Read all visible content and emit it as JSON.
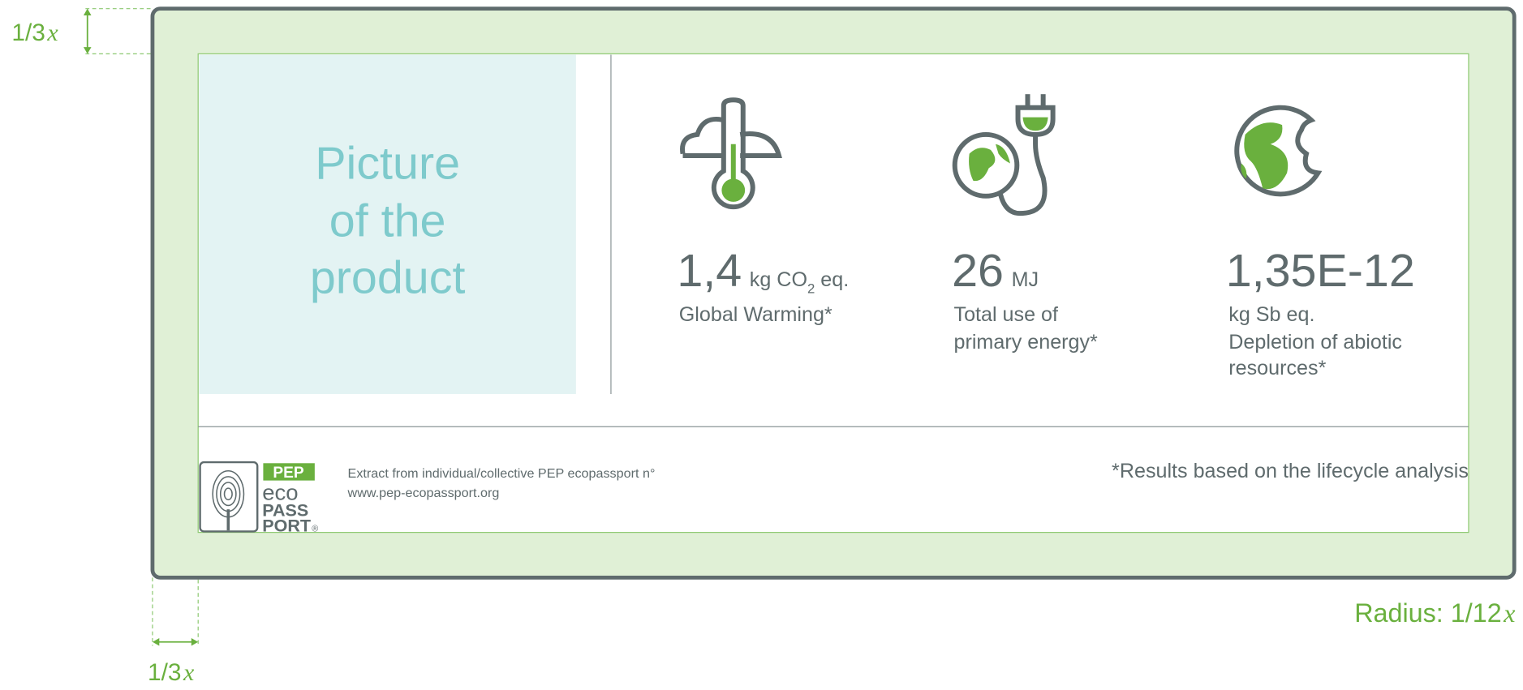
{
  "dimensions": {
    "top": {
      "fraction": "1/3",
      "variable": "x"
    },
    "left": {
      "fraction": "1/3",
      "variable": "x"
    },
    "radius": {
      "prefix": "Radius: ",
      "fraction": "1/12",
      "variable": "x"
    }
  },
  "placeholder": {
    "lines": [
      "Picture",
      "of the",
      "product"
    ]
  },
  "indicators": [
    {
      "value": "1,4",
      "unit": "kg CO",
      "unit_sub": "2",
      "unit_tail": " eq.",
      "label_lines": [
        "Global Warming*"
      ]
    },
    {
      "value": "26",
      "unit": "MJ",
      "label_lines": [
        "Total use of",
        "primary energy*"
      ]
    },
    {
      "value": "1,35E-12",
      "label_lines": [
        "kg Sb eq.",
        "Depletion of abiotic",
        "resources*"
      ]
    }
  ],
  "logo": {
    "badge": "PEP",
    "lines": [
      "eco",
      "PASS",
      "PORT"
    ],
    "mark": "®"
  },
  "footer": {
    "extract": "Extract from individual/collective PEP ecopassport n°",
    "url": "www.pep-ecopassport.org",
    "note": "*Results based on the lifecycle analysis"
  }
}
